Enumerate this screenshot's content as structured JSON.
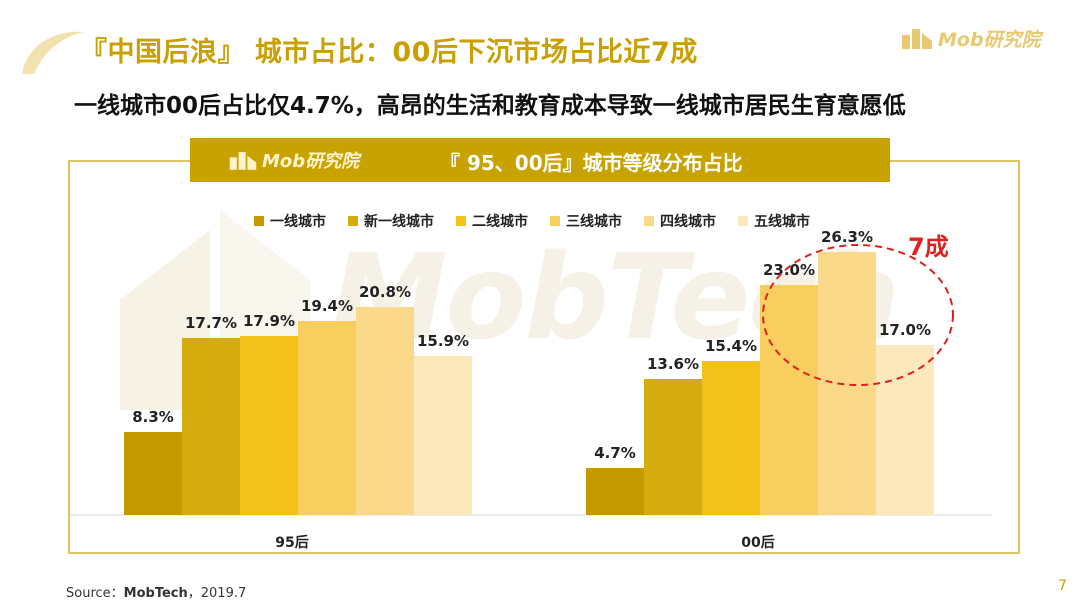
{
  "header": {
    "title": "『中国后浪』 城市占比：00后下沉市场占比近7成",
    "subtitle": "一线城市00后占比仅4.7%，高昂的生活和教育成本导致一线城市居民生育意愿低",
    "brand_logo": "Mob研究院"
  },
  "chart_panel": {
    "brand_logo": "Mob研究院",
    "watermark": "MobTech"
  },
  "chart_data": {
    "type": "bar",
    "title": "『 95、00后』城市等级分布占比",
    "categories": [
      "95后",
      "00后"
    ],
    "series": [
      {
        "name": "一线城市",
        "values": [
          8.3,
          4.7
        ],
        "color": "#c49a00"
      },
      {
        "name": "新一线城市",
        "values": [
          17.7,
          13.6
        ],
        "color": "#d4ac0d"
      },
      {
        "name": "二线城市",
        "values": [
          17.9,
          15.4
        ],
        "color": "#f2c21b"
      },
      {
        "name": "三线城市",
        "values": [
          19.4,
          23.0
        ],
        "color": "#f8cf5f"
      },
      {
        "name": "四线城市",
        "values": [
          20.8,
          26.3
        ],
        "color": "#fbd98a"
      },
      {
        "name": "五线城市",
        "values": [
          15.9,
          17.0
        ],
        "color": "#fde8bb"
      }
    ],
    "value_suffix": "%",
    "ylim": [
      0,
      30
    ],
    "grid": false,
    "legend_position": "top",
    "annotation": {
      "text": "7成",
      "color": "#e02020"
    }
  },
  "footer": {
    "source_prefix": "Source：",
    "source_name": "MobTech",
    "source_suffix": "，2019.7",
    "page_number": "7"
  }
}
